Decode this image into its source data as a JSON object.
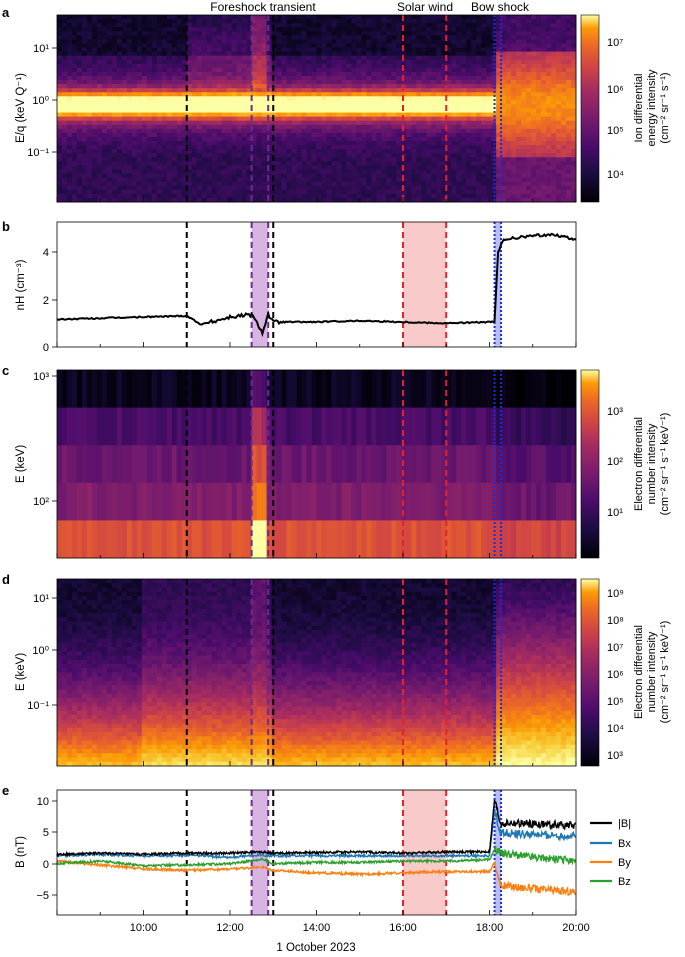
{
  "figure": {
    "xlabel": "1 October 2023",
    "time_start": "08:00",
    "time_end": "20:00",
    "time_tick_labels": [
      "10:00",
      "12:00",
      "14:00",
      "16:00",
      "18:00",
      "20:00"
    ],
    "region_labels": {
      "foreshock": "Foreshock transient",
      "solar_wind": "Solar wind",
      "bow_shock": "Bow shock"
    },
    "markers": {
      "black_dashed": [
        "11:00",
        "13:00"
      ],
      "purple_dashed": [
        "12:30",
        "12:53"
      ],
      "purple_band": [
        "12:30",
        "12:53"
      ],
      "red_dashed": [
        "16:00",
        "17:00"
      ],
      "red_band": [
        "16:00",
        "17:00"
      ],
      "blue_dotted": [
        "18:07",
        "18:16"
      ],
      "blue_band": [
        "18:07",
        "18:16"
      ]
    },
    "colors": {
      "black_marker": "#000000",
      "purple_marker": "#6a2c8e",
      "purple_band": "#d8b4e2",
      "red_marker": "#e8202a",
      "red_band": "#f9caca",
      "blue_marker": "#1f2ccf",
      "blue_band": "#b8bff4"
    }
  },
  "panels": {
    "a": {
      "label": "a",
      "ylabel": "E/q (keV Q⁻¹)",
      "yticks": [
        "10¹",
        "10⁰",
        "10⁻¹"
      ],
      "colorbar_label": [
        "Ion differential",
        "energy intensity",
        "(cm⁻² sr⁻¹ s⁻¹)"
      ],
      "colorbar_ticks": [
        "10⁷",
        "10⁶",
        "10⁵",
        "10⁴"
      ],
      "colormap": "inferno"
    },
    "b": {
      "label": "b",
      "ylabel": "nH (cm⁻³)",
      "yticks": [
        "4",
        "2",
        "0"
      ]
    },
    "c": {
      "label": "c",
      "ylabel": "E (keV)",
      "yticks": [
        "10³",
        "10²"
      ],
      "colorbar_label": [
        "Electron differential",
        "number intensity",
        "(cm⁻² sr⁻¹ s⁻¹ keV⁻¹)"
      ],
      "colorbar_ticks": [
        "10³",
        "10²",
        "10¹"
      ],
      "colormap": "inferno"
    },
    "d": {
      "label": "d",
      "ylabel": "E (keV)",
      "yticks": [
        "10¹",
        "10⁰",
        "10⁻¹"
      ],
      "colorbar_label": [
        "Electron differential",
        "number intensity",
        "(cm⁻² sr⁻¹ s⁻¹ keV⁻¹)"
      ],
      "colorbar_ticks": [
        "10⁹",
        "10⁸",
        "10⁷",
        "10⁶",
        "10⁵",
        "10⁴",
        "10³"
      ],
      "colormap": "inferno"
    },
    "e": {
      "label": "e",
      "ylabel": "B (nT)",
      "yticks": [
        "10",
        "5",
        "0",
        "−5"
      ],
      "legend": [
        "|B|",
        "Bx",
        "By",
        "Bz"
      ]
    }
  },
  "chart_data": [
    {
      "type": "heatmap",
      "panel": "a",
      "ylabel": "E/q (keV Q⁻¹)",
      "y_scale": "log",
      "ylim": [
        0.012,
        50
      ],
      "colorbar_range": [
        3000,
        50000000
      ],
      "colorbar_label": "Ion differential energy intensity (cm⁻² sr⁻¹ s⁻¹)"
    },
    {
      "type": "line",
      "panel": "b",
      "ylabel": "nH (cm⁻³)",
      "ylim": [
        0,
        5
      ],
      "x": [
        "08:00",
        "09:00",
        "10:00",
        "11:00",
        "11:20",
        "12:00",
        "12:30",
        "12:45",
        "12:53",
        "13:00",
        "14:00",
        "15:00",
        "16:00",
        "17:00",
        "18:00",
        "18:07",
        "18:12",
        "18:20",
        "19:00",
        "19:30",
        "20:00"
      ],
      "values": [
        1.1,
        1.15,
        1.2,
        1.25,
        0.9,
        1.2,
        1.3,
        0.6,
        1.3,
        1.0,
        1.0,
        1.05,
        1.0,
        0.95,
        1.0,
        1.0,
        3.8,
        4.3,
        4.45,
        4.5,
        4.3
      ]
    },
    {
      "type": "heatmap",
      "panel": "c",
      "ylabel": "E (keV)",
      "y_scale": "log",
      "ylim": [
        30,
        1000
      ],
      "colorbar_range": [
        3,
        5000
      ],
      "colorbar_label": "Electron differential number intensity (cm⁻² sr⁻¹ s⁻¹ keV⁻¹)"
    },
    {
      "type": "heatmap",
      "panel": "d",
      "ylabel": "E (keV)",
      "y_scale": "log",
      "ylim": [
        0.03,
        30
      ],
      "colorbar_range": [
        700,
        2000000000
      ],
      "colorbar_label": "Electron differential number intensity (cm⁻² sr⁻¹ s⁻¹ keV⁻¹)"
    },
    {
      "type": "line",
      "panel": "e",
      "ylabel": "B (nT)",
      "ylim": [
        -7,
        12
      ],
      "x": [
        "08:00",
        "09:00",
        "10:00",
        "11:00",
        "12:00",
        "12:45",
        "13:00",
        "14:00",
        "15:00",
        "16:00",
        "17:00",
        "18:00",
        "18:07",
        "18:15",
        "19:00",
        "20:00"
      ],
      "series": [
        {
          "name": "|B|",
          "color": "#000000",
          "values": [
            2.2,
            2.4,
            2.2,
            2.4,
            2.4,
            2.6,
            2.4,
            2.5,
            2.6,
            2.4,
            2.6,
            2.6,
            10.5,
            7.0,
            6.8,
            6.6
          ]
        },
        {
          "name": "Bx",
          "color": "#1f77b4",
          "values": [
            2.0,
            2.2,
            2.0,
            2.1,
            1.8,
            2.1,
            2.0,
            2.0,
            2.0,
            2.0,
            2.0,
            2.0,
            9.0,
            5.5,
            5.2,
            5.0
          ]
        },
        {
          "name": "By",
          "color": "#ff7f0e",
          "values": [
            1.2,
            0.6,
            0.0,
            -0.2,
            0.0,
            0.3,
            -0.2,
            -0.6,
            -0.8,
            -0.6,
            -0.4,
            -0.4,
            1.0,
            -2.5,
            -3.0,
            -3.5
          ]
        },
        {
          "name": "Bz",
          "color": "#2ca02c",
          "values": [
            0.8,
            1.2,
            0.5,
            0.6,
            0.8,
            1.5,
            0.8,
            1.0,
            1.0,
            1.2,
            1.2,
            1.4,
            3.0,
            2.5,
            1.8,
            1.2
          ]
        }
      ]
    }
  ]
}
